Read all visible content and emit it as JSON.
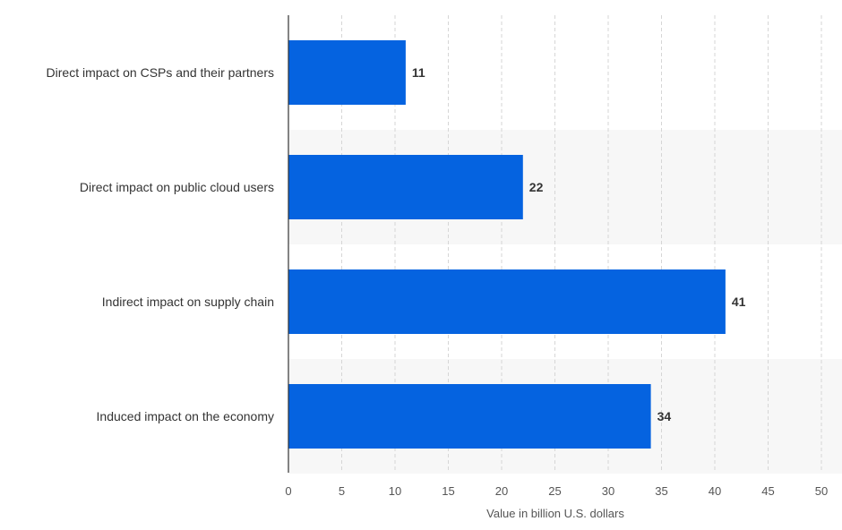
{
  "chart_data": {
    "type": "bar",
    "orientation": "horizontal",
    "categories": [
      "Direct impact on CSPs and their partners",
      "Direct impact on public cloud users",
      "Indirect impact on supply chain",
      "Induced impact on the economy"
    ],
    "values": [
      11,
      22,
      41,
      34
    ],
    "xlabel": "Value in billion U.S. dollars",
    "ylabel": "",
    "xlim": [
      0,
      50
    ],
    "xticks": [
      "0",
      "5",
      "10",
      "15",
      "20",
      "25",
      "30",
      "35",
      "40",
      "45",
      "50"
    ],
    "grid": "vertical dashed",
    "band_shading": "alternating",
    "bar_color": "#0563e0",
    "band_color": "#f7f7f7",
    "grid_color": "#d6d6d6"
  }
}
